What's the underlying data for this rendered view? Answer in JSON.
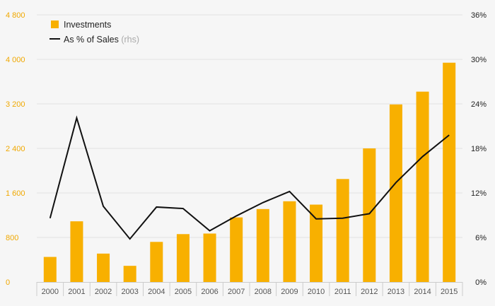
{
  "chart_data": {
    "type": "bar",
    "categories": [
      "2000",
      "2001",
      "2002",
      "2003",
      "2004",
      "2005",
      "2006",
      "2007",
      "2008",
      "2009",
      "2010",
      "2011",
      "2012",
      "2013",
      "2014",
      "2015"
    ],
    "series": [
      {
        "name": "Investments",
        "type": "bar",
        "axis": "left",
        "color": "#f8b000",
        "values": [
          450,
          1090,
          510,
          290,
          720,
          860,
          870,
          1160,
          1310,
          1450,
          1390,
          1850,
          2400,
          3190,
          3420,
          3940
        ]
      },
      {
        "name": "As % of Sales",
        "name_suffix": "(rhs)",
        "type": "line",
        "axis": "right",
        "color": "#111111",
        "values": [
          8.6,
          22.1,
          10.2,
          5.8,
          10.1,
          9.9,
          6.9,
          8.9,
          10.7,
          12.2,
          8.5,
          8.6,
          9.2,
          13.4,
          16.9,
          19.8
        ]
      }
    ],
    "y_left": {
      "ticks": [
        0,
        800,
        1600,
        2400,
        3200,
        4000,
        4800
      ],
      "tick_labels": [
        "0",
        "800",
        "1 600",
        "2 400",
        "3 200",
        "4 000",
        "4 800"
      ],
      "range": [
        0,
        4800
      ],
      "color": "#f0a800"
    },
    "y_right": {
      "ticks": [
        0,
        6,
        12,
        18,
        24,
        30,
        36
      ],
      "tick_labels": [
        "0%",
        "6%",
        "12%",
        "18%",
        "24%",
        "30%",
        "36%"
      ],
      "range": [
        0,
        36
      ],
      "color": "#222222"
    },
    "grid": true,
    "legend": {
      "placement": "top-left"
    },
    "title": "",
    "xlabel": "",
    "ylabel": ""
  },
  "colors": {
    "background": "#f6f6f6",
    "gridline": "#e2e2e2",
    "axis": "#cccccc"
  }
}
